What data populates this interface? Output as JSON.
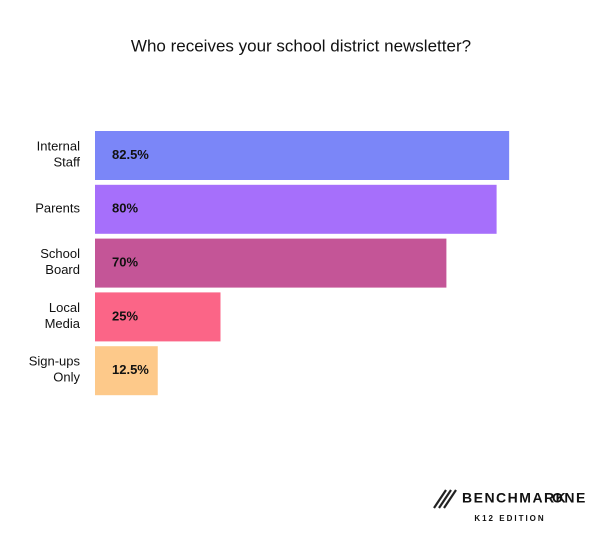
{
  "chart_data": {
    "type": "bar",
    "orientation": "horizontal",
    "title": "Who receives your school district newsletter?",
    "categories": [
      "Internal Staff",
      "Parents",
      "School Board",
      "Local Media",
      "Sign-ups Only"
    ],
    "values": [
      82.5,
      80,
      70,
      25,
      12.5
    ],
    "value_labels": [
      "82.5%",
      "80%",
      "70%",
      "25%",
      "12.5%"
    ],
    "colors": [
      "#7b86f8",
      "#a66ffb",
      "#c45597",
      "#fb6587",
      "#fdc98a"
    ]
  },
  "logo": {
    "brand": "BENCHMARK",
    "brand_accent": "ONE",
    "edition": "K12 EDITION"
  }
}
